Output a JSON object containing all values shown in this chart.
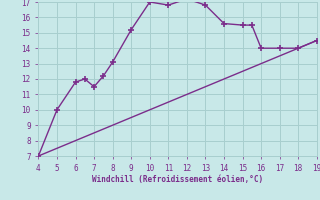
{
  "xlabel": "Windchill (Refroidissement éolien,°C)",
  "curve_x": [
    4,
    5,
    6,
    6.5,
    7,
    7.5,
    8,
    9,
    10,
    11,
    12,
    13,
    14,
    15,
    15.5,
    16,
    17,
    18,
    19
  ],
  "curve_y": [
    7,
    10,
    11.8,
    12,
    11.5,
    12.2,
    13.1,
    15.2,
    17,
    16.8,
    17.2,
    16.8,
    15.6,
    15.5,
    15.5,
    14,
    14,
    14,
    14.5
  ],
  "line_x": [
    4,
    19
  ],
  "line_y": [
    7,
    14.5
  ],
  "line_color": "#7b2d8b",
  "curve_color": "#7b2d8b",
  "bg_color": "#c8e8e8",
  "grid_color": "#a8cece",
  "xlim": [
    4,
    19
  ],
  "ylim": [
    7,
    17
  ],
  "xticks": [
    4,
    5,
    6,
    7,
    8,
    9,
    10,
    11,
    12,
    13,
    14,
    15,
    16,
    17,
    18,
    19
  ],
  "yticks": [
    7,
    8,
    9,
    10,
    11,
    12,
    13,
    14,
    15,
    16,
    17
  ],
  "marker": "+",
  "marker_size": 5,
  "linewidth": 1.0
}
